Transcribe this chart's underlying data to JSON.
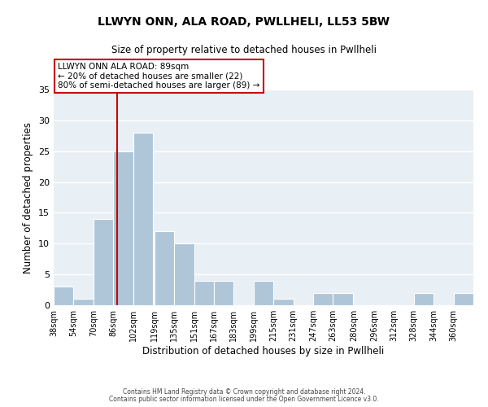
{
  "title": "LLWYN ONN, ALA ROAD, PWLLHELI, LL53 5BW",
  "subtitle": "Size of property relative to detached houses in Pwllheli",
  "xlabel": "Distribution of detached houses by size in Pwllheli",
  "ylabel": "Number of detached properties",
  "footer_line1": "Contains HM Land Registry data © Crown copyright and database right 2024.",
  "footer_line2": "Contains public sector information licensed under the Open Government Licence v3.0.",
  "bin_labels": [
    "38sqm",
    "54sqm",
    "70sqm",
    "86sqm",
    "102sqm",
    "119sqm",
    "135sqm",
    "151sqm",
    "167sqm",
    "183sqm",
    "199sqm",
    "215sqm",
    "231sqm",
    "247sqm",
    "263sqm",
    "280sqm",
    "296sqm",
    "312sqm",
    "328sqm",
    "344sqm",
    "360sqm"
  ],
  "bin_edges": [
    38,
    54,
    70,
    86,
    102,
    119,
    135,
    151,
    167,
    183,
    199,
    215,
    231,
    247,
    263,
    280,
    296,
    312,
    328,
    344,
    360
  ],
  "bin_width": 16,
  "counts": [
    3,
    1,
    14,
    25,
    28,
    12,
    10,
    4,
    4,
    0,
    4,
    1,
    0,
    2,
    2,
    0,
    0,
    0,
    2,
    0,
    2
  ],
  "bar_color": "#aec6d8",
  "bar_edge_color": "#ffffff",
  "property_line_x": 89,
  "annotation_text_line1": "LLWYN ONN ALA ROAD: 89sqm",
  "annotation_text_line2": "← 20% of detached houses are smaller (22)",
  "annotation_text_line3": "80% of semi-detached houses are larger (89) →",
  "annotation_box_color": "#ffffff",
  "annotation_box_edge_color": "#cc0000",
  "property_line_color": "#cc0000",
  "ylim": [
    0,
    35
  ],
  "background_color": "#ffffff",
  "plot_background_color": "#e8eff5",
  "grid_color": "#ffffff"
}
